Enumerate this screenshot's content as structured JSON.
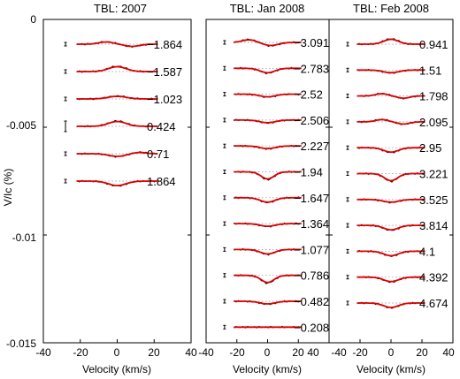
{
  "chart_data": {
    "type": "line",
    "ylabel": "V/Ic (%)",
    "xlabel": "Velocity (km/s)",
    "ylim": [
      -0.015,
      0
    ],
    "yticks": [
      "0",
      "-0.005",
      "-0.01",
      "-0.015"
    ],
    "series_colors": {
      "observed": "#000000",
      "model": "#dd0000"
    },
    "panels": [
      {
        "title": "TBL: 2007",
        "xticks": [
          "-40",
          "-20",
          "0",
          "20",
          "40"
        ],
        "profiles": [
          {
            "label": "-1.864",
            "shape": "mild-wave"
          },
          {
            "label": "-1.587",
            "shape": "emission"
          },
          {
            "label": "-1.023",
            "shape": "weak-emission"
          },
          {
            "label": "0.424",
            "shape": "emission"
          },
          {
            "label": "0.71",
            "shape": "absorption-wave"
          },
          {
            "label": "1.864",
            "shape": "absorption"
          }
        ]
      },
      {
        "title": "TBL: Jan 2008",
        "xticks": [
          "-40",
          "-20",
          "0",
          "20",
          "40"
        ],
        "profiles": [
          {
            "label": "-3.091",
            "shape": "broad-wave"
          },
          {
            "label": "-2.783",
            "shape": "absorption"
          },
          {
            "label": "-2.52",
            "shape": "weak-absorption"
          },
          {
            "label": "-2.506",
            "shape": "weak-absorption"
          },
          {
            "label": "-2.227",
            "shape": "weak-absorption"
          },
          {
            "label": "-1.94",
            "shape": "strong-absorption"
          },
          {
            "label": "-1.647",
            "shape": "absorption"
          },
          {
            "label": "-1.364",
            "shape": "weak-absorption"
          },
          {
            "label": "-1.077",
            "shape": "absorption"
          },
          {
            "label": "-0.786",
            "shape": "strong-absorption"
          },
          {
            "label": "-0.482",
            "shape": "weak-absorption"
          },
          {
            "label": "-0.208",
            "shape": "flat"
          }
        ]
      },
      {
        "title": "TBL: Feb 2008",
        "xticks": [
          "-40",
          "-20",
          "0",
          "20",
          "40"
        ],
        "profiles": [
          {
            "label": "0.941",
            "shape": "emission"
          },
          {
            "label": "1.51",
            "shape": "weak-absorption"
          },
          {
            "label": "1.798",
            "shape": "mild-wave"
          },
          {
            "label": "2.095",
            "shape": "mild-wave"
          },
          {
            "label": "2.95",
            "shape": "absorption"
          },
          {
            "label": "3.221",
            "shape": "strong-absorption"
          },
          {
            "label": "3.525",
            "shape": "weak-absorption"
          },
          {
            "label": "3.814",
            "shape": "absorption"
          },
          {
            "label": "4.1",
            "shape": "absorption"
          },
          {
            "label": "4.392",
            "shape": "absorption"
          },
          {
            "label": "4.674",
            "shape": "absorption"
          }
        ]
      }
    ]
  }
}
